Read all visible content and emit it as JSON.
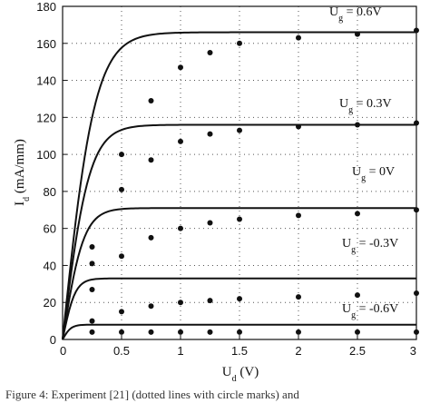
{
  "chart_data": {
    "type": "line",
    "xlabel": {
      "main": "U",
      "sub": "d",
      "tail": " (V)"
    },
    "ylabel": {
      "main": "I",
      "sub": "d",
      "tail": " (mA/mm)"
    },
    "xlim": [
      0,
      3
    ],
    "ylim": [
      0,
      180
    ],
    "xticks": [
      0,
      0.5,
      1,
      1.5,
      2,
      2.5,
      3
    ],
    "xtick_labels": [
      "0",
      "0.5",
      "1",
      "1.5",
      "2",
      "2.5",
      "3"
    ],
    "yticks": [
      0,
      20,
      40,
      60,
      80,
      100,
      120,
      140,
      160,
      180
    ],
    "ytick_labels": [
      "0",
      "20",
      "40",
      "60",
      "80",
      "100",
      "120",
      "140",
      "160",
      "180"
    ],
    "grid": "dotted",
    "series": [
      {
        "gate_label": {
          "main": "U",
          "sub": "g",
          "tail": " = 0.6V"
        },
        "line": {
          "sat": 166,
          "knee": 1.15
        },
        "points": [
          [
            0.25,
            50
          ],
          [
            0.5,
            100
          ],
          [
            0.75,
            129
          ],
          [
            1.0,
            147
          ],
          [
            1.25,
            155
          ],
          [
            1.5,
            160
          ],
          [
            2.0,
            163
          ],
          [
            2.5,
            165
          ],
          [
            3.0,
            167
          ]
        ]
      },
      {
        "gate_label": {
          "main": "U",
          "sub": "g",
          "tail": " = 0.3V"
        },
        "line": {
          "sat": 116,
          "knee": 0.95
        },
        "points": [
          [
            0.25,
            41
          ],
          [
            0.5,
            81
          ],
          [
            0.75,
            97
          ],
          [
            1.0,
            107
          ],
          [
            1.25,
            111
          ],
          [
            1.5,
            113
          ],
          [
            2.0,
            115
          ],
          [
            2.5,
            116
          ],
          [
            3.0,
            117
          ]
        ]
      },
      {
        "gate_label": {
          "main": "U",
          "sub": "g",
          "tail": " = 0V"
        },
        "line": {
          "sat": 71,
          "knee": 0.75
        },
        "points": [
          [
            0.25,
            27
          ],
          [
            0.5,
            45
          ],
          [
            0.75,
            55
          ],
          [
            1.0,
            60
          ],
          [
            1.25,
            63
          ],
          [
            1.5,
            65
          ],
          [
            2.0,
            67
          ],
          [
            2.5,
            68
          ],
          [
            3.0,
            70
          ]
        ]
      },
      {
        "gate_label": {
          "main": "U",
          "sub": "g",
          "tail": " = -0.3V"
        },
        "line": {
          "sat": 33,
          "knee": 0.45
        },
        "points": [
          [
            0.25,
            10
          ],
          [
            0.5,
            15
          ],
          [
            0.75,
            18
          ],
          [
            1.0,
            20
          ],
          [
            1.25,
            21
          ],
          [
            1.5,
            22
          ],
          [
            2.0,
            23
          ],
          [
            2.5,
            24
          ],
          [
            3.0,
            25
          ]
        ]
      },
      {
        "gate_label": {
          "main": "U",
          "sub": "g",
          "tail": " = -0.6V"
        },
        "line": {
          "sat": 8,
          "knee": 0.3
        },
        "points": [
          [
            0.25,
            4
          ],
          [
            0.5,
            4
          ],
          [
            0.75,
            4
          ],
          [
            1.0,
            4
          ],
          [
            1.25,
            4
          ],
          [
            1.5,
            4
          ],
          [
            2.0,
            4
          ],
          [
            2.5,
            4
          ],
          [
            3.0,
            4
          ]
        ]
      }
    ],
    "caption": "Figure 4: Experiment [21] (dotted lines with circle marks) and"
  }
}
